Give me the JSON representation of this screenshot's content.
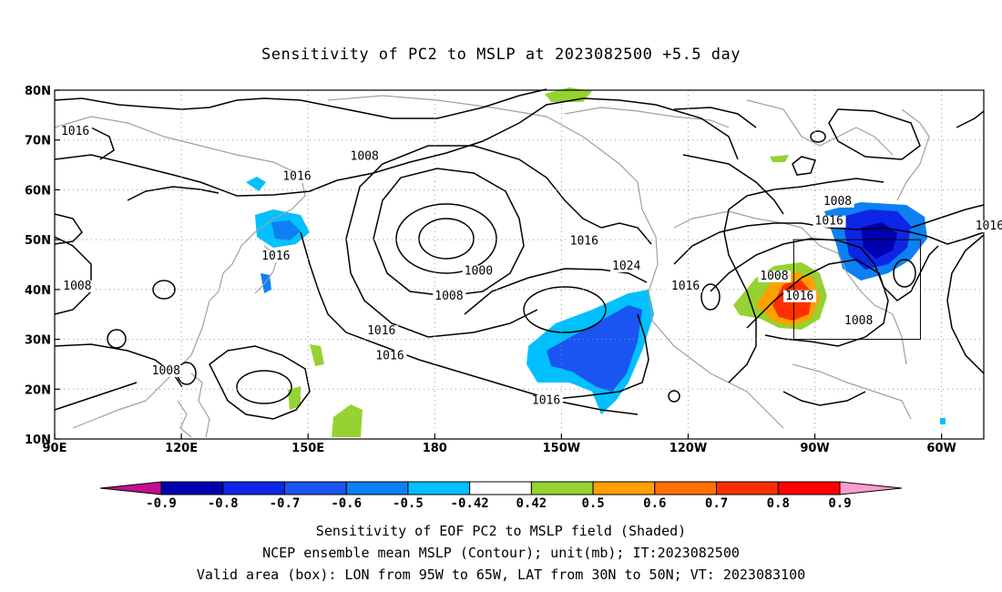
{
  "title": "Sensitivity of PC2 to MSLP at 2023082500 +5.5 day",
  "map": {
    "lon_range": [
      90,
      310
    ],
    "lat_range": [
      10,
      80
    ],
    "lon_ticks": [
      {
        "lon": 90,
        "label": "90E"
      },
      {
        "lon": 120,
        "label": "120E"
      },
      {
        "lon": 150,
        "label": "150E"
      },
      {
        "lon": 180,
        "label": "180"
      },
      {
        "lon": 210,
        "label": "150W"
      },
      {
        "lon": 240,
        "label": "120W"
      },
      {
        "lon": 270,
        "label": "90W"
      },
      {
        "lon": 300,
        "label": "60W"
      }
    ],
    "lat_ticks": [
      {
        "lat": 80,
        "label": "80N"
      },
      {
        "lat": 70,
        "label": "70N"
      },
      {
        "lat": 60,
        "label": "60N"
      },
      {
        "lat": 50,
        "label": "50N"
      },
      {
        "lat": 40,
        "label": "40N"
      },
      {
        "lat": 30,
        "label": "30N"
      },
      {
        "lat": 20,
        "label": "20N"
      },
      {
        "lat": 10,
        "label": "10N"
      }
    ],
    "valid_box": {
      "lon_min": 265,
      "lon_max": 295,
      "lat_min": 30,
      "lat_max": 50
    },
    "contour_labels": [
      {
        "text": "1016",
        "lon": 91.5,
        "lat": 71
      },
      {
        "text": "1008",
        "lon": 160,
        "lat": 66
      },
      {
        "text": "1016",
        "lon": 144,
        "lat": 62
      },
      {
        "text": "1016",
        "lon": 139,
        "lat": 46
      },
      {
        "text": "1008",
        "lon": 92,
        "lat": 40
      },
      {
        "text": "1000",
        "lon": 187,
        "lat": 43
      },
      {
        "text": "1008",
        "lon": 180,
        "lat": 38
      },
      {
        "text": "1016",
        "lon": 212,
        "lat": 49
      },
      {
        "text": "1024",
        "lon": 222,
        "lat": 44
      },
      {
        "text": "1016",
        "lon": 236,
        "lat": 40
      },
      {
        "text": "1016",
        "lon": 164,
        "lat": 31
      },
      {
        "text": "1016",
        "lon": 166,
        "lat": 26
      },
      {
        "text": "1008",
        "lon": 113,
        "lat": 23
      },
      {
        "text": "1016",
        "lon": 203,
        "lat": 17
      },
      {
        "text": "1008",
        "lon": 257,
        "lat": 42
      },
      {
        "text": "1008",
        "lon": 272,
        "lat": 57
      },
      {
        "text": "1016",
        "lon": 270,
        "lat": 53
      },
      {
        "text": "1016",
        "lon": 263,
        "lat": 38
      },
      {
        "text": "1008",
        "lon": 277,
        "lat": 33
      },
      {
        "text": "1016",
        "lon": 308,
        "lat": 52
      }
    ]
  },
  "colorbar": {
    "labels": [
      "-0.9",
      "-0.8",
      "-0.7",
      "-0.6",
      "-0.5",
      "-0.42",
      "0.42",
      "0.5",
      "0.6",
      "0.7",
      "0.8",
      "0.9"
    ],
    "colors": [
      "#0000b0",
      "#0d25e6",
      "#1a55f2",
      "#0d80f2",
      "#00c0ff",
      "#ffffff",
      "#96d232",
      "#ffa000",
      "#ff7000",
      "#ff3000",
      "#ff0000"
    ],
    "low_end_color": "#c0108f",
    "high_end_color": "#ff9ccc"
  },
  "captions": {
    "line1": "Sensitivity of EOF PC2 to MSLP field (Shaded)",
    "line2": "NCEP ensemble mean MSLP (Contour); unit(mb); IT:2023082500",
    "line3": "Valid area (box): LON from 95W to 65W, LAT from 30N to 50N; VT: 2023083100"
  }
}
